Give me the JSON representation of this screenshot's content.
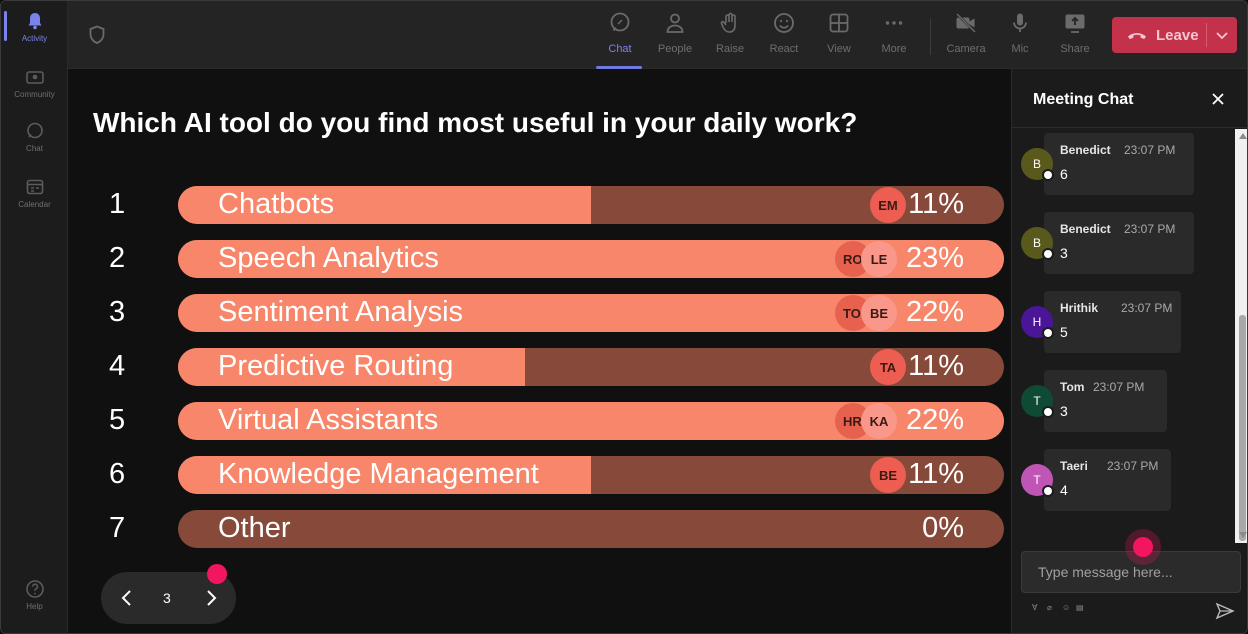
{
  "rail": {
    "items": [
      {
        "label": "Activity",
        "icon": "bell-icon",
        "active": true
      },
      {
        "label": "Community",
        "icon": "community-icon"
      },
      {
        "label": "Chat",
        "icon": "chat-icon"
      },
      {
        "label": "Calendar",
        "icon": "calendar-icon"
      }
    ],
    "help": "Help"
  },
  "toolbar": {
    "items": [
      {
        "label": "Chat",
        "icon": "chat-icon",
        "active": true
      },
      {
        "label": "People",
        "icon": "people-icon"
      },
      {
        "label": "Raise",
        "icon": "hand-icon"
      },
      {
        "label": "React",
        "icon": "smile-icon"
      },
      {
        "label": "View",
        "icon": "grid-icon"
      },
      {
        "label": "More",
        "icon": "more-icon"
      },
      {
        "label": "Camera",
        "icon": "camera-off-icon"
      },
      {
        "label": "Mic",
        "icon": "mic-icon"
      },
      {
        "label": "Share",
        "icon": "share-icon"
      }
    ],
    "leave_label": "Leave"
  },
  "poll": {
    "question": "Which AI tool do you find most useful in your daily work?",
    "options": [
      {
        "num": "1",
        "label": "Chatbots",
        "pct": "11%",
        "fill": 0.5,
        "avatars": [
          "EM"
        ]
      },
      {
        "num": "2",
        "label": "Speech Analytics",
        "pct": "23%",
        "fill": 1.0,
        "avatars": [
          "RO",
          "LE"
        ]
      },
      {
        "num": "3",
        "label": "Sentiment Analysis",
        "pct": "22%",
        "fill": 1.0,
        "avatars": [
          "TO",
          "BE"
        ]
      },
      {
        "num": "4",
        "label": "Predictive Routing",
        "pct": "11%",
        "fill": 0.42,
        "avatars": [
          "TA"
        ]
      },
      {
        "num": "5",
        "label": "Virtual Assistants",
        "pct": "22%",
        "fill": 1.0,
        "avatars": [
          "HR",
          "KA"
        ]
      },
      {
        "num": "6",
        "label": "Knowledge Management",
        "pct": "11%",
        "fill": 0.5,
        "avatars": [
          "BE"
        ]
      },
      {
        "num": "7",
        "label": "Other",
        "pct": "0%",
        "fill": 0,
        "avatars": []
      }
    ],
    "page": "3"
  },
  "chat": {
    "title": "Meeting Chat",
    "messages": [
      {
        "initial": "B",
        "name": "Benedict",
        "time": "23:07 PM",
        "text": "6",
        "color": "#59591c"
      },
      {
        "initial": "B",
        "name": "Benedict",
        "time": "23:07 PM",
        "text": "3",
        "color": "#59591c"
      },
      {
        "initial": "H",
        "name": "Hrithik",
        "time": "23:07 PM",
        "text": "5",
        "color": "#4a1596"
      },
      {
        "initial": "T",
        "name": "Tom",
        "time": "23:07 PM",
        "text": "3",
        "color": "#0f4a34"
      },
      {
        "initial": "T",
        "name": "Taeri",
        "time": "23:07 PM",
        "text": "4",
        "color": "#c155b5"
      }
    ],
    "input_placeholder": "Type message here..."
  }
}
